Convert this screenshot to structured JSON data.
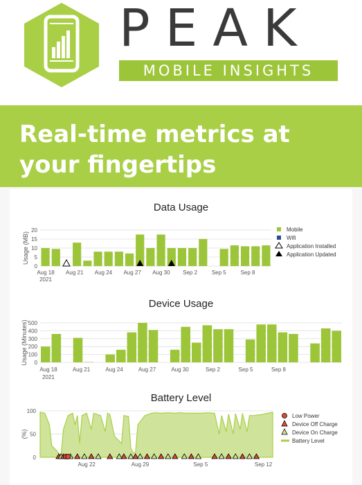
{
  "brand": {
    "name": "PEAK",
    "tagline": "MOBILE INSIGHTS"
  },
  "headline": {
    "line1": "Real-time metrics at",
    "line2": "your fingertips"
  },
  "colors": {
    "accent": "#a9cf46",
    "dark": "#3a3a3a",
    "bar": "#9dc53a",
    "wifi": "#2a4d8f"
  },
  "icons": {
    "logo": "bar-chart-phone-icon"
  },
  "charts": [
    {
      "type": "bar",
      "title": "Data Usage",
      "ylabel": "Usage (MB)",
      "ylim": [
        0,
        20
      ],
      "yticks": [
        "0",
        "5",
        "10",
        "15",
        "20"
      ],
      "xticks": [
        "Aug 18",
        "Aug 21",
        "Aug 24",
        "Aug 27",
        "Aug 30",
        "Sep 2",
        "Sep 5",
        "Sep 8"
      ],
      "xyear": "2021",
      "legend": [
        "Mobile",
        "Wifi",
        "Application Installed",
        "Application Updated"
      ],
      "values": [
        10,
        9.5,
        0,
        13,
        3,
        8,
        8,
        8,
        7,
        17.5,
        10,
        17.5,
        10,
        10,
        10,
        15,
        0,
        9.5,
        11.5,
        11,
        11,
        11.5
      ],
      "installed": [
        2
      ],
      "updated": [
        9,
        12
      ]
    },
    {
      "type": "bar",
      "title": "Device Usage",
      "ylabel": "Usage (Minutes)",
      "ylim": [
        0,
        500
      ],
      "yticks": [
        "0",
        "100",
        "200",
        "300",
        "400",
        "500"
      ],
      "xticks": [
        "Aug 18",
        "Aug 21",
        "Aug 24",
        "Aug 27",
        "Aug 30",
        "Sep 2",
        "Sep 5",
        "Sep 8"
      ],
      "xyear": "2021",
      "values": [
        200,
        360,
        0,
        310,
        5,
        0,
        100,
        160,
        380,
        500,
        410,
        0,
        160,
        450,
        250,
        470,
        420,
        420,
        0,
        290,
        480,
        480,
        380,
        360,
        0,
        240,
        430,
        400
      ]
    },
    {
      "type": "area",
      "title": "Battery Level",
      "ylabel": "(%)",
      "ylim": [
        0,
        100
      ],
      "yticks": [
        "0",
        "50",
        "100"
      ],
      "xticks": [
        "Aug 22",
        "Aug 29",
        "Sep 5",
        "Sep 12"
      ],
      "legend": [
        "Low Power",
        "Device Off Charge",
        "Device On Charge",
        "Battery Level"
      ]
    }
  ]
}
